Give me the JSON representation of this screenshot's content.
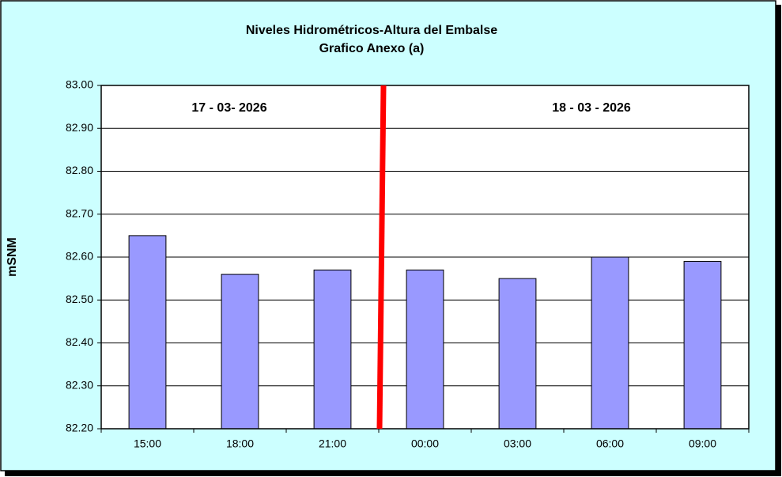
{
  "chart_data": {
    "type": "bar",
    "title": "Niveles Hidrométricos-Altura del Embalse",
    "subtitle": "Grafico Anexo (a)",
    "y_label": "mSNM",
    "categories": [
      "15:00",
      "18:00",
      "21:00",
      "00:00",
      "03:00",
      "06:00",
      "09:00"
    ],
    "values": [
      82.65,
      82.56,
      82.57,
      82.57,
      82.55,
      82.6,
      82.59
    ],
    "color": "#9999ff",
    "ylim": [
      82.2,
      83.0
    ],
    "yticks": [
      {
        "value": 82.2,
        "label": "82.20"
      },
      {
        "value": 82.3,
        "label": "82.30"
      },
      {
        "value": 82.4,
        "label": "82.40"
      },
      {
        "value": 82.5,
        "label": "82.50"
      },
      {
        "value": 82.6,
        "label": "82.60"
      },
      {
        "value": 82.7,
        "label": "82.70"
      },
      {
        "value": 82.8,
        "label": "82.80"
      },
      {
        "value": 82.9,
        "label": "82.90"
      },
      {
        "value": 83.0,
        "label": "83.00"
      }
    ],
    "grid": true,
    "annotations": [
      "17 - 03- 2026",
      "18 - 03 - 2026"
    ]
  }
}
